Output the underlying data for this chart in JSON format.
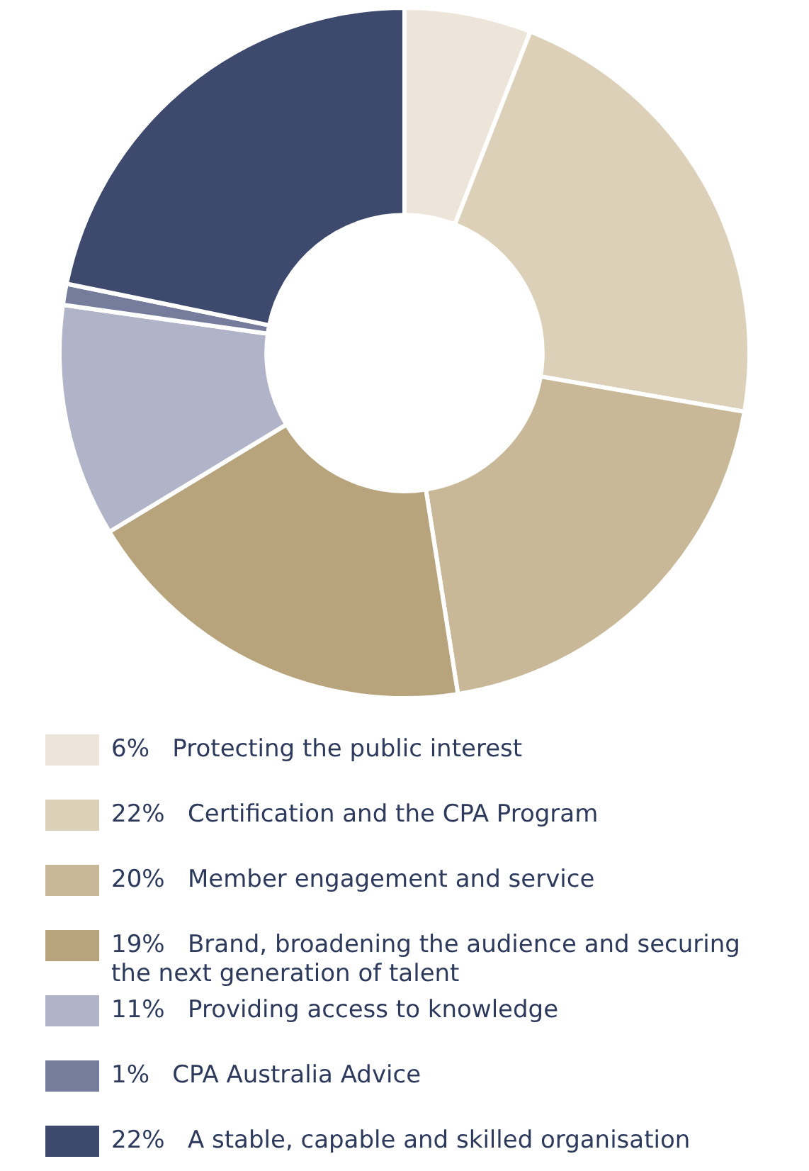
{
  "chart_data": {
    "type": "donut",
    "categories": [
      "Protecting the public interest",
      "Certification and the CPA Program",
      "Member engagement and service",
      "Brand, broadening the audience and securing the next generation of talent",
      "Providing access to knowledge",
      "CPA Australia Advice",
      "A stable, capable and skilled organisation"
    ],
    "values": [
      6,
      22,
      20,
      19,
      11,
      1,
      22
    ],
    "value_labels": [
      "6%",
      "22%",
      "20%",
      "19%",
      "11%",
      "1%",
      "22%"
    ],
    "colors": [
      "#ede5da",
      "#ddd0b8",
      "#c9b897",
      "#b7a37c",
      "#b1b4c9",
      "#767c9b",
      "#3e4a6d"
    ],
    "legend": "bottom"
  }
}
